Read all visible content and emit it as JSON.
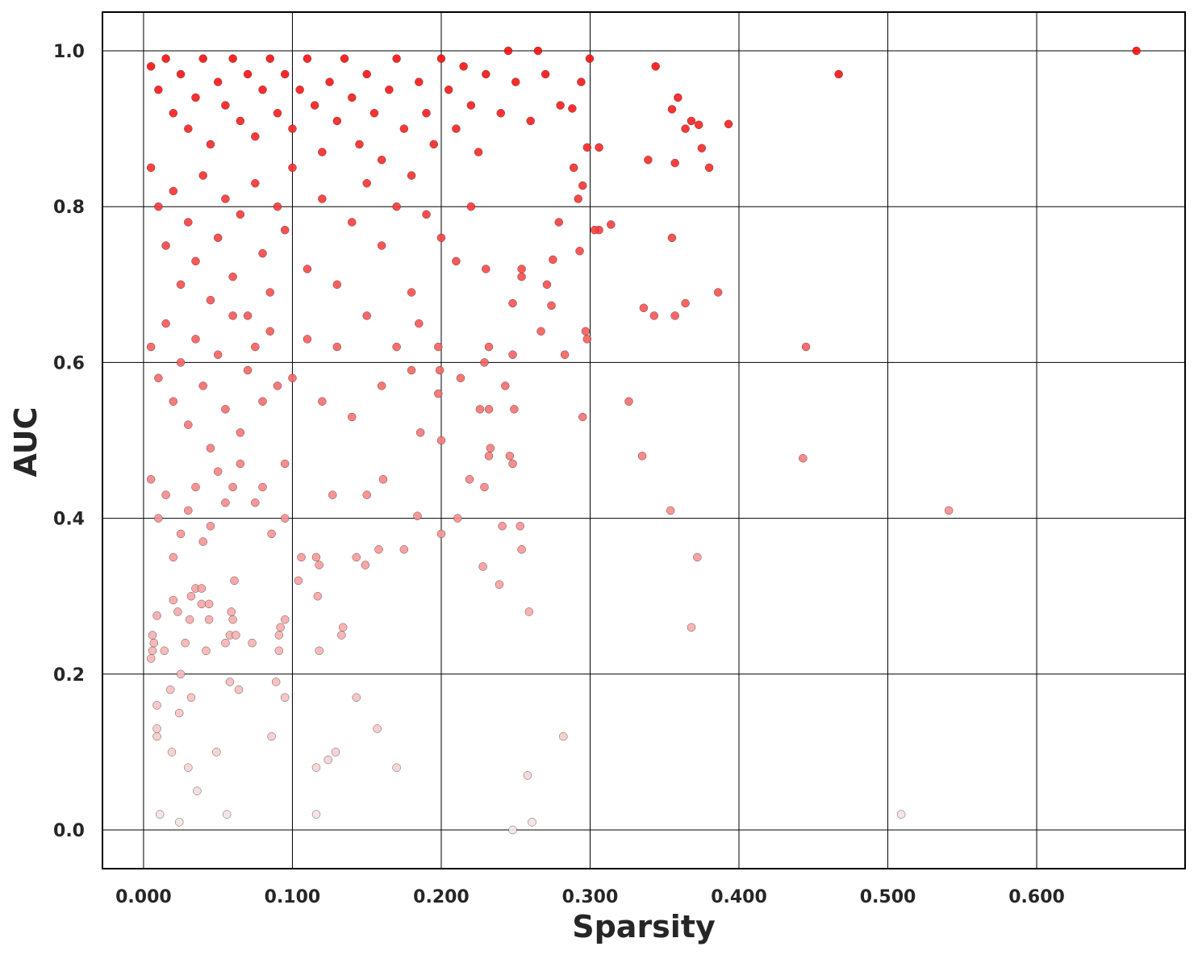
{
  "chart_data": {
    "type": "scatter",
    "x_label": "Sparsity",
    "y_label": "AUC",
    "color": "#ff0000",
    "grid": true,
    "xlim": [
      -0.0276,
      0.6997
    ],
    "ylim": [
      -0.0497,
      1.0497
    ],
    "xticks": [
      {
        "value": 0,
        "label": "0.000"
      },
      {
        "value": 0.1,
        "label": "0.100"
      },
      {
        "value": 0.2,
        "label": "0.200"
      },
      {
        "value": 0.3,
        "label": "0.300"
      },
      {
        "value": 0.4,
        "label": "0.400"
      },
      {
        "value": 0.5,
        "label": "0.500"
      },
      {
        "value": 0.6,
        "label": "0.600"
      }
    ],
    "yticks": [
      {
        "value": 0,
        "label": "0.0"
      },
      {
        "value": 0.2,
        "label": "0.2"
      },
      {
        "value": 0.4,
        "label": "0.4"
      },
      {
        "value": 0.6,
        "label": "0.6"
      },
      {
        "value": 0.8,
        "label": "0.8"
      },
      {
        "value": 1,
        "label": "1.0"
      }
    ],
    "x": [
      0.667,
      0.467,
      0.445,
      0.443,
      0.541,
      0.509,
      0.393,
      0.386,
      0.38,
      0.375,
      0.373,
      0.368,
      0.364,
      0.359,
      0.355,
      0.344,
      0.339,
      0.357,
      0.355,
      0.364,
      0.336,
      0.343,
      0.357,
      0.372,
      0.354,
      0.368,
      0.335,
      0.326,
      0.314,
      0.306,
      0.303,
      0.306,
      0.298,
      0.2997,
      0.295,
      0.298,
      0.297,
      0.293,
      0.292,
      0.295,
      0.289,
      0.294,
      0.288,
      0.282,
      0.283,
      0.279,
      0.275,
      0.274,
      0.271,
      0.267,
      0.261,
      0.248,
      0.258,
      0.259,
      0.254,
      0.253,
      0.249,
      0.248,
      0.246,
      0.248,
      0.248,
      0.254,
      0.254,
      0.241,
      0.239,
      0.243,
      0.233,
      0.232,
      0.232,
      0.229,
      0.229,
      0.228,
      0.226,
      0.232,
      0.219,
      0.211,
      0.213,
      0.2,
      0.2,
      0.198,
      0.199,
      0.198,
      0.186,
      0.184,
      0.185,
      0.175,
      0.17,
      0.157,
      0.158,
      0.161,
      0.15,
      0.149,
      0.143,
      0.143,
      0.129,
      0.124,
      0.116,
      0.116,
      0.118,
      0.117,
      0.116,
      0.118,
      0.134,
      0.133,
      0.127,
      0.104,
      0.106,
      0.095,
      0.092,
      0.095,
      0.091,
      0.089,
      0.091,
      0.086,
      0.073,
      0.064,
      0.058,
      0.056,
      0.049,
      0.036,
      0.03,
      0.032,
      0.024,
      0.024,
      0.025,
      0.019,
      0.018,
      0.011,
      0.009,
      0.009,
      0.009,
      0.005,
      0.006,
      0.007,
      0.006,
      0.009,
      0.014,
      0.02,
      0.023,
      0.028,
      0.031,
      0.032,
      0.035,
      0.039,
      0.039,
      0.044,
      0.044,
      0.042,
      0.055,
      0.059,
      0.061,
      0.06,
      0.058,
      0.062,
      0.005,
      0.01,
      0.015,
      0.02,
      0.025,
      0.03,
      0.035,
      0.04,
      0.045,
      0.05,
      0.055,
      0.06,
      0.065,
      0.07,
      0.075,
      0.08,
      0.085,
      0.09,
      0.095,
      0.1,
      0.105,
      0.11,
      0.115,
      0.12,
      0.125,
      0.13,
      0.135,
      0.14,
      0.145,
      0.15,
      0.155,
      0.16,
      0.165,
      0.17,
      0.175,
      0.18,
      0.185,
      0.19,
      0.195,
      0.2,
      0.205,
      0.21,
      0.215,
      0.22,
      0.225,
      0.23,
      0.24,
      0.245,
      0.25,
      0.26,
      0.265,
      0.27,
      0.28,
      0.005,
      0.01,
      0.015,
      0.02,
      0.025,
      0.03,
      0.035,
      0.04,
      0.045,
      0.05,
      0.055,
      0.06,
      0.065,
      0.07,
      0.075,
      0.08,
      0.085,
      0.09,
      0.095,
      0.1,
      0.11,
      0.12,
      0.13,
      0.14,
      0.15,
      0.16,
      0.17,
      0.18,
      0.19,
      0.2,
      0.21,
      0.22,
      0.23,
      0.005,
      0.01,
      0.015,
      0.02,
      0.025,
      0.03,
      0.035,
      0.04,
      0.045,
      0.05,
      0.055,
      0.06,
      0.065,
      0.07,
      0.075,
      0.08,
      0.085,
      0.09,
      0.095,
      0.1,
      0.11,
      0.12,
      0.13,
      0.14,
      0.15,
      0.16,
      0.17,
      0.18,
      0.005,
      0.01,
      0.015,
      0.02,
      0.025,
      0.03,
      0.035,
      0.04,
      0.045,
      0.05,
      0.055,
      0.06,
      0.065,
      0.075,
      0.08,
      0.086,
      0.095
    ],
    "y": [
      1.0,
      0.97,
      0.62,
      0.477,
      0.41,
      0.02,
      0.906,
      0.69,
      0.85,
      0.875,
      0.905,
      0.91,
      0.9,
      0.94,
      0.925,
      0.98,
      0.86,
      0.856,
      0.76,
      0.676,
      0.67,
      0.66,
      0.66,
      0.35,
      0.41,
      0.26,
      0.48,
      0.55,
      0.777,
      0.77,
      0.77,
      0.876,
      0.876,
      0.99,
      0.53,
      0.63,
      0.64,
      0.743,
      0.81,
      0.827,
      0.85,
      0.96,
      0.926,
      0.12,
      0.61,
      0.78,
      0.732,
      0.673,
      0.7,
      0.64,
      0.01,
      0.0,
      0.07,
      0.28,
      0.36,
      0.39,
      0.54,
      0.47,
      0.48,
      0.676,
      0.61,
      0.71,
      0.72,
      0.39,
      0.315,
      0.57,
      0.49,
      0.48,
      0.62,
      0.6,
      0.44,
      0.338,
      0.54,
      0.54,
      0.45,
      0.4,
      0.58,
      0.5,
      0.38,
      0.56,
      0.59,
      0.62,
      0.51,
      0.403,
      0.65,
      0.36,
      0.08,
      0.13,
      0.36,
      0.45,
      0.43,
      0.34,
      0.35,
      0.17,
      0.1,
      0.09,
      0.02,
      0.08,
      0.23,
      0.3,
      0.35,
      0.34,
      0.26,
      0.25,
      0.43,
      0.32,
      0.35,
      0.27,
      0.26,
      0.17,
      0.25,
      0.19,
      0.23,
      0.12,
      0.24,
      0.18,
      0.19,
      0.02,
      0.1,
      0.05,
      0.08,
      0.17,
      0.01,
      0.15,
      0.2,
      0.1,
      0.18,
      0.02,
      0.12,
      0.13,
      0.16,
      0.22,
      0.23,
      0.24,
      0.25,
      0.275,
      0.23,
      0.295,
      0.28,
      0.24,
      0.27,
      0.3,
      0.31,
      0.31,
      0.29,
      0.29,
      0.27,
      0.23,
      0.24,
      0.28,
      0.32,
      0.27,
      0.25,
      0.25,
      0.98,
      0.95,
      0.99,
      0.92,
      0.97,
      0.9,
      0.94,
      0.99,
      0.88,
      0.96,
      0.93,
      0.99,
      0.91,
      0.97,
      0.89,
      0.95,
      0.99,
      0.92,
      0.97,
      0.9,
      0.95,
      0.99,
      0.93,
      0.87,
      0.96,
      0.91,
      0.99,
      0.94,
      0.88,
      0.97,
      0.92,
      0.86,
      0.95,
      0.99,
      0.9,
      0.84,
      0.96,
      0.92,
      0.88,
      0.99,
      0.95,
      0.9,
      0.98,
      0.93,
      0.87,
      0.97,
      0.92,
      1.0,
      0.96,
      0.91,
      1.0,
      0.97,
      0.93,
      0.85,
      0.8,
      0.75,
      0.82,
      0.7,
      0.78,
      0.73,
      0.84,
      0.68,
      0.76,
      0.81,
      0.71,
      0.79,
      0.66,
      0.83,
      0.74,
      0.69,
      0.8,
      0.77,
      0.85,
      0.72,
      0.81,
      0.7,
      0.78,
      0.83,
      0.75,
      0.8,
      0.69,
      0.79,
      0.76,
      0.73,
      0.8,
      0.72,
      0.62,
      0.58,
      0.65,
      0.55,
      0.6,
      0.52,
      0.63,
      0.57,
      0.49,
      0.61,
      0.54,
      0.66,
      0.51,
      0.59,
      0.62,
      0.55,
      0.64,
      0.57,
      0.47,
      0.58,
      0.63,
      0.55,
      0.62,
      0.53,
      0.66,
      0.57,
      0.62,
      0.59,
      0.45,
      0.4,
      0.43,
      0.35,
      0.38,
      0.41,
      0.44,
      0.37,
      0.39,
      0.46,
      0.42,
      0.44,
      0.47,
      0.42,
      0.44,
      0.38,
      0.4
    ]
  }
}
